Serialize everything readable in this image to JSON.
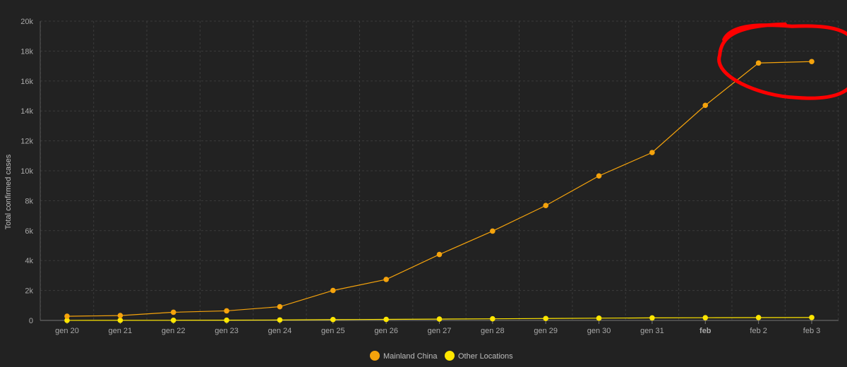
{
  "chart_data": {
    "type": "line",
    "ylabel": "Total confirmed cases",
    "ylim": [
      0,
      20000
    ],
    "y_ticks": [
      "0",
      "2k",
      "4k",
      "6k",
      "8k",
      "10k",
      "12k",
      "14k",
      "16k",
      "18k",
      "20k"
    ],
    "categories": [
      "gen 20",
      "gen 21",
      "gen 22",
      "gen 23",
      "gen 24",
      "gen 25",
      "gen 26",
      "gen 27",
      "gen 28",
      "gen 29",
      "gen 30",
      "gen 31",
      "feb",
      "feb 2",
      "feb 3"
    ],
    "bold_category": "feb",
    "grid": true,
    "legend_position": "bottom-center",
    "series": [
      {
        "name": "Mainland China",
        "color": "#f5a30c",
        "values": [
          278,
          326,
          547,
          639,
          916,
          2000,
          2737,
          4409,
          5970,
          7678,
          9658,
          11221,
          14375,
          17205,
          17300
        ]
      },
      {
        "name": "Other Locations",
        "color": "#ffe600",
        "values": [
          4,
          6,
          10,
          17,
          30,
          54,
          70,
          90,
          110,
          130,
          150,
          170,
          180,
          190,
          195
        ]
      }
    ],
    "annotation": {
      "type": "hand-drawn-circle",
      "color": "#ff0000",
      "target": [
        "feb 2",
        "feb 3"
      ]
    }
  }
}
